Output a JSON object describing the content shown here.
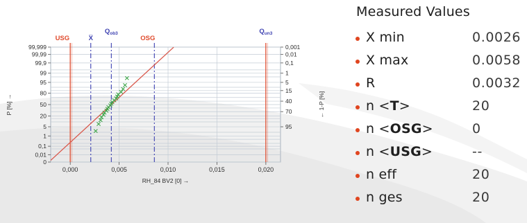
{
  "chart_data": {
    "type": "scatter",
    "xlabel": "RH_84  BV2 [0] →",
    "ylabel_left": "P [%] →",
    "ylabel_right": "← 1-P [%]",
    "xlim": [
      -0.002,
      0.0215
    ],
    "x_ticks": [
      {
        "value": 0.0,
        "label": "0,000"
      },
      {
        "value": 0.005,
        "label": "0,005"
      },
      {
        "value": 0.01,
        "label": "0,010"
      },
      {
        "value": 0.015,
        "label": "0,015"
      },
      {
        "value": 0.02,
        "label": "0,020"
      }
    ],
    "y_scale": "normal-probability",
    "y_ticks_left": [
      {
        "p": 99.999,
        "label": "99,999"
      },
      {
        "p": 99.99,
        "label": "99,99"
      },
      {
        "p": 99.9,
        "label": "99,9"
      },
      {
        "p": 99,
        "label": "99"
      },
      {
        "p": 95,
        "label": "95"
      },
      {
        "p": 80,
        "label": "80"
      },
      {
        "p": 50,
        "label": "50"
      },
      {
        "p": 20,
        "label": "20"
      },
      {
        "p": 5,
        "label": "5"
      },
      {
        "p": 1,
        "label": "1"
      },
      {
        "p": 0.1,
        "label": "0,1"
      },
      {
        "p": 0.01,
        "label": "0,01"
      },
      {
        "p": 0.001,
        "label": "0"
      }
    ],
    "y_ticks_right": [
      {
        "p": 99.999,
        "label": "0,001"
      },
      {
        "p": 99.99,
        "label": "0,01"
      },
      {
        "p": 99.9,
        "label": "0,1"
      },
      {
        "p": 99,
        "label": "1"
      },
      {
        "p": 95,
        "label": "5"
      },
      {
        "p": 85,
        "label": "15"
      },
      {
        "p": 60,
        "label": "40"
      },
      {
        "p": 30,
        "label": "70"
      },
      {
        "p": 5,
        "label": "95"
      }
    ],
    "grid_p": [
      99.999,
      99.99,
      99.9,
      99.5,
      99,
      98,
      95,
      90,
      85,
      80,
      70,
      60,
      50,
      40,
      30,
      20,
      15,
      10,
      5,
      2,
      1,
      0.5,
      0.2,
      0.1,
      0.05,
      0.01,
      0.001
    ],
    "grid_x": [
      0.0,
      0.005,
      0.01,
      0.015,
      0.02
    ],
    "reference_lines": [
      {
        "name": "USG",
        "x": 0.0,
        "color": "#e04a2c",
        "style": "solid"
      },
      {
        "name": "OSG",
        "x": 0.02,
        "color": "#e04a2c",
        "style": "solid"
      },
      {
        "name": "Qun3",
        "x": 0.0021,
        "color": "#3b3fb0",
        "style": "dashdot"
      },
      {
        "name": "Xbar",
        "x": 0.0042,
        "color": "#3b3fb0",
        "style": "dashdot"
      },
      {
        "name": "Qob3",
        "x": 0.0086,
        "color": "#3b3fb0",
        "style": "dashdot"
      }
    ],
    "reference_labels": [
      {
        "text": "USG",
        "color": "#e04a2c"
      },
      {
        "text": "Q",
        "sub": "un3",
        "color": "#3b3fb0"
      },
      {
        "text": "X̅",
        "color": "#3b3fb0"
      },
      {
        "text": "Q",
        "sub": "ob3",
        "color": "#3b3fb0"
      },
      {
        "text": "OSG",
        "color": "#e04a2c"
      }
    ],
    "fit_line": {
      "mean": 0.0042,
      "sd": 0.0015,
      "color": "#d9574a"
    },
    "series": [
      {
        "color": "#3fa64a",
        "points": [
          {
            "x": 0.0026,
            "p": 2.5
          },
          {
            "x": 0.0029,
            "p": 7.5
          },
          {
            "x": 0.0031,
            "p": 12.5
          },
          {
            "x": 0.0032,
            "p": 17.5
          },
          {
            "x": 0.0034,
            "p": 22.5
          },
          {
            "x": 0.0035,
            "p": 27.5
          },
          {
            "x": 0.0037,
            "p": 32.5
          },
          {
            "x": 0.0038,
            "p": 37.5
          },
          {
            "x": 0.0039,
            "p": 42.5
          },
          {
            "x": 0.0041,
            "p": 47.5
          },
          {
            "x": 0.0042,
            "p": 52.5
          },
          {
            "x": 0.0043,
            "p": 57.5
          },
          {
            "x": 0.0045,
            "p": 62.5
          },
          {
            "x": 0.0047,
            "p": 67.5
          },
          {
            "x": 0.0048,
            "p": 72.5
          },
          {
            "x": 0.0049,
            "p": 77.5
          },
          {
            "x": 0.0052,
            "p": 82.5
          },
          {
            "x": 0.0054,
            "p": 87.5
          },
          {
            "x": 0.0056,
            "p": 92.5
          },
          {
            "x": 0.0058,
            "p": 97.5
          }
        ]
      }
    ]
  },
  "measured": {
    "title": "Measured Values",
    "rows": [
      {
        "label": "X min",
        "value": "0.0026"
      },
      {
        "label": "X max",
        "value": "0.0058"
      },
      {
        "label": "R",
        "value": "0.0032"
      },
      {
        "label_prefix": "n <",
        "label_sub": "T",
        "label_suffix": ">",
        "value": "20"
      },
      {
        "label_prefix": "n <",
        "label_sub": "OSG",
        "label_suffix": ">",
        "value": "0"
      },
      {
        "label_prefix": "n <",
        "label_sub": "USG",
        "label_suffix": ">",
        "value": "--"
      },
      {
        "label": "n eff",
        "value": "20"
      },
      {
        "label": "n ges",
        "value": "20"
      }
    ]
  },
  "colors": {
    "accent_red": "#e0451f",
    "backdrop_shade": "#eaeaea"
  }
}
